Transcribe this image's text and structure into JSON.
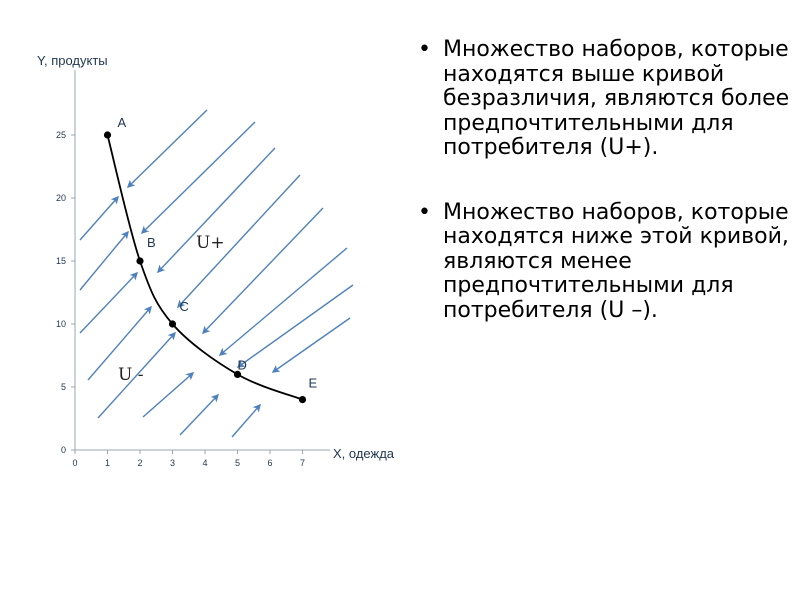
{
  "slide": {
    "bullets": [
      "Множество наборов, которые находятся выше кривой безразличия, являются более предпочтительными для потребителя (U+).",
      "Множество наборов, которые находятся ниже этой  кривой, являются менее предпочтительными для потребителя (U –)."
    ],
    "bullet_symbol": "•"
  },
  "chart_data": {
    "type": "line",
    "xlabel": "X, одежда",
    "ylabel": "Y, продукты",
    "xlim": [
      0,
      7.5
    ],
    "ylim": [
      0,
      27.5
    ],
    "x_ticks": [
      0,
      1,
      2,
      3,
      4,
      5,
      6,
      7
    ],
    "y_ticks": [
      0,
      5,
      10,
      15,
      20,
      25
    ],
    "grid": false,
    "series": [
      {
        "x": [
          1,
          2,
          3,
          5,
          7
        ],
        "y": [
          25,
          15,
          10,
          6,
          4
        ],
        "point_labels": [
          "A",
          "B",
          "C",
          "D",
          "E"
        ]
      }
    ],
    "region_labels": {
      "above": "U+",
      "below": "U -"
    },
    "arrows": {
      "above_direction": "toward curve (down-left)",
      "below_direction": "toward curve (up-right)"
    },
    "colors": {
      "curve": "#000000",
      "arrows": "#4f81bd",
      "axis": "#9aa4ae",
      "text": "#1f3550"
    }
  }
}
